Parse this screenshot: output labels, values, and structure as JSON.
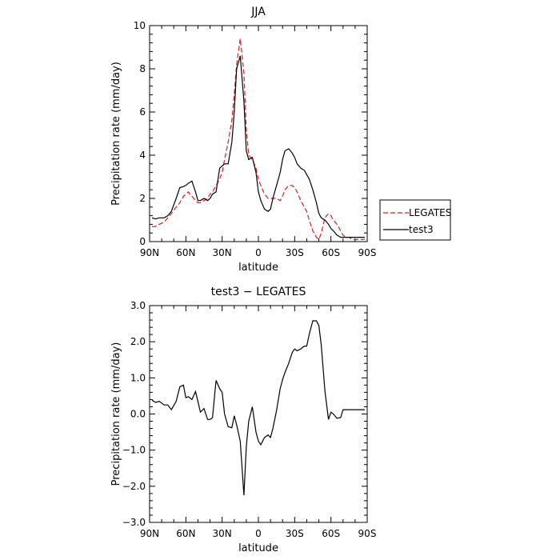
{
  "chart_data": [
    {
      "type": "line",
      "title": "JJA",
      "xlabel": "latitude",
      "ylabel": "Precipitation rate (mm/day)",
      "xlim": [
        90,
        -90
      ],
      "ylim": [
        0,
        10
      ],
      "x_ticks": [
        90,
        60,
        30,
        0,
        -30,
        -60,
        -90
      ],
      "x_tick_labels": [
        "90N",
        "60N",
        "30N",
        "0",
        "30S",
        "60S",
        "90S"
      ],
      "y_ticks": [
        0,
        2,
        4,
        6,
        8,
        10
      ],
      "y_tick_labels": [
        "0",
        "2",
        "4",
        "6",
        "8",
        "10"
      ],
      "grid": false,
      "legend_position": "right",
      "series": [
        {
          "name": "LEGATES",
          "color": "#e41a1c",
          "dash": "dashed",
          "x": [
            88,
            85,
            82,
            78,
            75,
            72,
            68,
            65,
            62,
            60,
            58,
            55,
            52,
            50,
            48,
            45,
            42,
            40,
            38,
            35,
            32,
            30,
            28,
            25,
            22,
            20,
            18,
            15,
            12,
            10,
            8,
            5,
            2,
            0,
            -2,
            -5,
            -8,
            -10,
            -12,
            -15,
            -18,
            -20,
            -22,
            -25,
            -28,
            -30,
            -32,
            -35,
            -38,
            -40,
            -42,
            -45,
            -48,
            -50,
            -52,
            -55,
            -58,
            -60,
            -62,
            -65,
            -68,
            -70,
            -72,
            -75,
            -78,
            -80,
            -82,
            -85,
            -88
          ],
          "y": [
            0.7,
            0.7,
            0.8,
            0.9,
            1.1,
            1.3,
            1.6,
            1.8,
            2.1,
            2.2,
            2.3,
            2.1,
            1.9,
            1.8,
            1.8,
            1.9,
            2.0,
            2.2,
            2.3,
            2.6,
            2.9,
            3.2,
            3.8,
            4.6,
            5.6,
            6.8,
            8.2,
            9.4,
            7.8,
            5.2,
            4.0,
            3.8,
            3.4,
            2.9,
            2.6,
            2.2,
            2.0,
            2.0,
            2.0,
            2.0,
            1.9,
            2.1,
            2.4,
            2.6,
            2.6,
            2.5,
            2.3,
            1.9,
            1.6,
            1.4,
            1.0,
            0.5,
            0.2,
            0.1,
            0.4,
            1.1,
            1.3,
            1.2,
            1.0,
            0.8,
            0.5,
            0.3,
            0.2,
            0.2,
            0.1,
            0.1,
            0.1,
            0.1,
            0.1
          ]
        },
        {
          "name": "test3",
          "color": "#000000",
          "dash": "solid",
          "x": [
            88,
            85,
            82,
            78,
            75,
            72,
            68,
            65,
            62,
            60,
            58,
            55,
            52,
            50,
            48,
            45,
            42,
            40,
            38,
            35,
            32,
            30,
            28,
            25,
            22,
            20,
            18,
            15,
            12,
            10,
            8,
            5,
            2,
            0,
            -2,
            -5,
            -8,
            -10,
            -12,
            -15,
            -18,
            -20,
            -22,
            -25,
            -28,
            -30,
            -32,
            -35,
            -38,
            -40,
            -42,
            -45,
            -48,
            -50,
            -52,
            -55,
            -58,
            -60,
            -62,
            -65,
            -68,
            -70,
            -72,
            -75,
            -78,
            -80,
            -82,
            -85,
            -88
          ],
          "y": [
            1.1,
            1.05,
            1.1,
            1.1,
            1.2,
            1.4,
            2.0,
            2.5,
            2.55,
            2.6,
            2.7,
            2.8,
            2.3,
            1.9,
            1.9,
            2.0,
            1.9,
            2.0,
            2.2,
            2.3,
            3.4,
            3.5,
            3.6,
            3.6,
            4.6,
            6.0,
            8.0,
            8.6,
            6.5,
            4.2,
            3.8,
            3.9,
            3.2,
            2.3,
            1.9,
            1.5,
            1.4,
            1.5,
            2.0,
            2.6,
            3.2,
            3.8,
            4.2,
            4.3,
            4.1,
            3.9,
            3.6,
            3.4,
            3.3,
            3.1,
            2.9,
            2.4,
            1.8,
            1.3,
            1.1,
            1.0,
            0.8,
            0.6,
            0.5,
            0.3,
            0.2,
            0.2,
            0.2,
            0.2,
            0.2,
            0.2,
            0.2,
            0.2,
            0.2
          ]
        }
      ]
    },
    {
      "type": "line",
      "title": "test3 − LEGATES",
      "xlabel": "latitude",
      "ylabel": "Precipitation rate (mm/day)",
      "xlim": [
        90,
        -90
      ],
      "ylim": [
        -3,
        3
      ],
      "x_ticks": [
        90,
        60,
        30,
        0,
        -30,
        -60,
        -90
      ],
      "x_tick_labels": [
        "90N",
        "60N",
        "30N",
        "0",
        "30S",
        "60S",
        "90S"
      ],
      "y_ticks": [
        -3,
        -2,
        -1,
        0,
        1,
        2,
        3
      ],
      "y_tick_labels": [
        "−3.0",
        "−2.0",
        "−1.0",
        "0.0",
        "1.0",
        "2.0",
        "3.0"
      ],
      "grid": false,
      "series": [
        {
          "name": "",
          "color": "#000000",
          "dash": "solid",
          "x": [
            88,
            85,
            82,
            78,
            75,
            72,
            68,
            65,
            62,
            60,
            58,
            55,
            52,
            50,
            48,
            45,
            42,
            40,
            38,
            35,
            32,
            30,
            28,
            25,
            22,
            20,
            18,
            15,
            12,
            10,
            8,
            5,
            2,
            0,
            -2,
            -5,
            -8,
            -10,
            -12,
            -15,
            -18,
            -20,
            -22,
            -25,
            -28,
            -30,
            -32,
            -35,
            -38,
            -40,
            -42,
            -45,
            -48,
            -50,
            -52,
            -55,
            -58,
            -60,
            -62,
            -65,
            -68,
            -70,
            -72,
            -75,
            -78,
            -80,
            -82,
            -85,
            -88
          ],
          "y": [
            0.38,
            0.32,
            0.35,
            0.25,
            0.25,
            0.12,
            0.35,
            0.75,
            0.8,
            0.45,
            0.48,
            0.4,
            0.62,
            0.35,
            0.05,
            0.15,
            -0.15,
            -0.15,
            -0.1,
            0.93,
            0.7,
            0.6,
            0.0,
            -0.35,
            -0.38,
            -0.05,
            -0.3,
            -0.75,
            -2.25,
            -0.9,
            -0.2,
            0.2,
            -0.5,
            -0.75,
            -0.85,
            -0.65,
            -0.58,
            -0.65,
            -0.4,
            0.1,
            0.7,
            0.95,
            1.15,
            1.4,
            1.7,
            1.8,
            1.75,
            1.8,
            1.88,
            1.88,
            2.2,
            2.58,
            2.58,
            2.45,
            1.9,
            0.65,
            -0.15,
            0.05,
            0.0,
            -0.12,
            -0.1,
            0.12,
            0.12,
            0.12,
            0.12,
            0.12,
            0.12,
            0.12,
            0.12
          ]
        }
      ]
    }
  ]
}
